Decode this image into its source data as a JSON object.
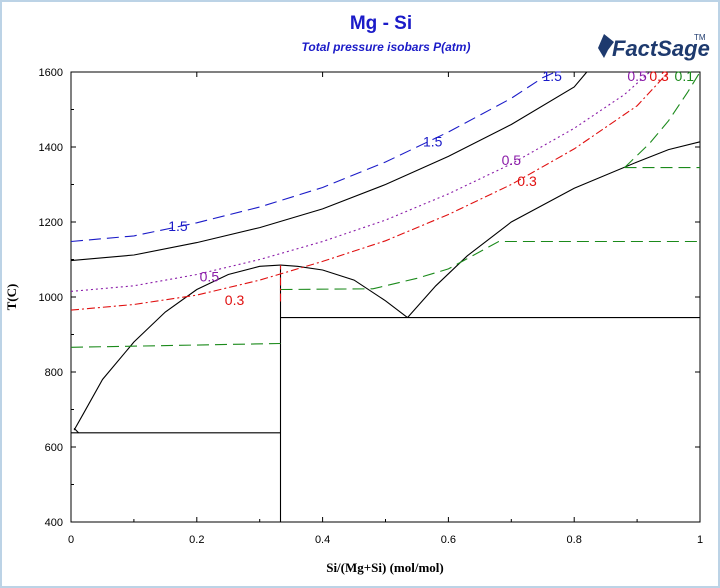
{
  "chart_data": {
    "type": "line",
    "title": "Mg - Si",
    "subtitle": "Total pressure isobars P(atm)",
    "xlabel": "Si/(Mg+Si) (mol/mol)",
    "ylabel": "T(C)",
    "xlim": [
      0,
      1
    ],
    "ylim": [
      400,
      1600
    ],
    "x_ticks": [
      0,
      0.2,
      0.4,
      0.6,
      0.8,
      1
    ],
    "y_ticks": [
      400,
      600,
      800,
      1000,
      1200,
      1400,
      1600
    ],
    "x_tick_labels": [
      "0",
      "0.2",
      "0.4",
      "0.6",
      "0.8",
      "1"
    ],
    "y_tick_labels": [
      "400",
      "600",
      "800",
      "1000",
      "1200",
      "1400",
      "1600"
    ],
    "grid": false,
    "logo": "FactSage",
    "phase_boundaries": [
      {
        "name": "liquidus-mg-side",
        "color": "#000000",
        "style": "solid",
        "points": [
          [
            0.005,
            645
          ],
          [
            0.02,
            690
          ],
          [
            0.05,
            780
          ],
          [
            0.1,
            880
          ],
          [
            0.15,
            960
          ],
          [
            0.2,
            1020
          ],
          [
            0.25,
            1060
          ],
          [
            0.3,
            1082
          ],
          [
            0.333,
            1085
          ]
        ]
      },
      {
        "name": "liquidus-mg2si-right",
        "color": "#000000",
        "style": "solid",
        "points": [
          [
            0.333,
            1085
          ],
          [
            0.36,
            1082
          ],
          [
            0.4,
            1072
          ],
          [
            0.45,
            1045
          ],
          [
            0.5,
            990
          ],
          [
            0.535,
            945
          ]
        ]
      },
      {
        "name": "liquidus-si-side",
        "color": "#000000",
        "style": "solid",
        "points": [
          [
            0.535,
            945
          ],
          [
            0.58,
            1030
          ],
          [
            0.63,
            1110
          ],
          [
            0.7,
            1200
          ],
          [
            0.8,
            1290
          ],
          [
            0.9,
            1360
          ],
          [
            0.95,
            1393
          ],
          [
            1.0,
            1414
          ]
        ]
      },
      {
        "name": "eutectic-mg",
        "color": "#000000",
        "style": "solid",
        "points": [
          [
            0.0,
            638
          ],
          [
            0.333,
            638
          ]
        ]
      },
      {
        "name": "eutectic-si",
        "color": "#000000",
        "style": "solid",
        "points": [
          [
            0.333,
            945
          ],
          [
            1.0,
            945
          ]
        ]
      },
      {
        "name": "mg2si-compound",
        "color": "#000000",
        "style": "solid",
        "points": [
          [
            0.333,
            400
          ],
          [
            0.333,
            1085
          ]
        ]
      },
      {
        "name": "mg-eutectic-left-drop",
        "color": "#000000",
        "style": "solid",
        "points": [
          [
            0.005,
            650
          ],
          [
            0.012,
            638
          ]
        ]
      }
    ],
    "series": [
      {
        "name": "1.5",
        "color": "#1b1bc8",
        "style": "longdash",
        "points": [
          [
            0,
            1148
          ],
          [
            0.1,
            1163
          ],
          [
            0.2,
            1198
          ],
          [
            0.3,
            1240
          ],
          [
            0.4,
            1292
          ],
          [
            0.5,
            1360
          ],
          [
            0.6,
            1440
          ],
          [
            0.7,
            1530
          ],
          [
            0.75,
            1585
          ],
          [
            0.77,
            1600
          ]
        ]
      },
      {
        "name": "1",
        "color": "#000000",
        "style": "solid",
        "points": [
          [
            0,
            1097
          ],
          [
            0.1,
            1112
          ],
          [
            0.2,
            1145
          ],
          [
            0.3,
            1185
          ],
          [
            0.4,
            1235
          ],
          [
            0.5,
            1300
          ],
          [
            0.6,
            1375
          ],
          [
            0.7,
            1460
          ],
          [
            0.8,
            1560
          ],
          [
            0.82,
            1600
          ]
        ]
      },
      {
        "name": "0.5",
        "color": "#8a1ba8",
        "style": "dotted",
        "points": [
          [
            0,
            1015
          ],
          [
            0.1,
            1030
          ],
          [
            0.2,
            1060
          ],
          [
            0.3,
            1100
          ],
          [
            0.4,
            1148
          ],
          [
            0.5,
            1205
          ],
          [
            0.6,
            1275
          ],
          [
            0.7,
            1355
          ],
          [
            0.8,
            1450
          ],
          [
            0.88,
            1540
          ],
          [
            0.92,
            1600
          ]
        ]
      },
      {
        "name": "0.3",
        "color": "#e01010",
        "style": "dashdot",
        "points": [
          [
            0,
            965
          ],
          [
            0.1,
            980
          ],
          [
            0.2,
            1005
          ],
          [
            0.3,
            1045
          ],
          [
            0.4,
            1095
          ],
          [
            0.5,
            1150
          ],
          [
            0.6,
            1220
          ],
          [
            0.7,
            1300
          ],
          [
            0.8,
            1395
          ],
          [
            0.9,
            1510
          ],
          [
            0.95,
            1600
          ]
        ]
      },
      {
        "name": "0.1",
        "color": "#1b8a1b",
        "style": "longdash",
        "points": [
          [
            0,
            866
          ],
          [
            0.333,
            876
          ]
        ]
      },
      {
        "name": "0.1-b",
        "color": "#1b8a1b",
        "style": "longdash",
        "points": [
          [
            0.333,
            1020
          ],
          [
            0.48,
            1022
          ],
          [
            0.55,
            1050
          ],
          [
            0.6,
            1075
          ],
          [
            0.68,
            1148
          ],
          [
            1.0,
            1148
          ]
        ]
      },
      {
        "name": "0.1-c",
        "color": "#1b8a1b",
        "style": "longdash",
        "points": [
          [
            0.88,
            1345
          ],
          [
            1.0,
            1345
          ]
        ]
      },
      {
        "name": "0.1-d",
        "color": "#1b8a1b",
        "style": "longdash",
        "points": [
          [
            0.88,
            1345
          ],
          [
            0.92,
            1410
          ],
          [
            0.95,
            1470
          ],
          [
            0.98,
            1545
          ],
          [
            1.0,
            1600
          ]
        ]
      }
    ],
    "red_dashdot_vertical": [
      {
        "points": [
          [
            0.333,
            988
          ],
          [
            0.333,
            1085
          ]
        ]
      }
    ],
    "labels": [
      {
        "text": "1.5",
        "color": "#1b1bc8",
        "x": 0.765,
        "y": 1590
      },
      {
        "text": "1.5",
        "color": "#1b1bc8",
        "x": 0.575,
        "y": 1415
      },
      {
        "text": "1.5",
        "color": "#1b1bc8",
        "x": 0.17,
        "y": 1190
      },
      {
        "text": "0.5",
        "color": "#8a1ba8",
        "x": 0.9,
        "y": 1590
      },
      {
        "text": "0.3",
        "color": "#e01010",
        "x": 0.935,
        "y": 1590
      },
      {
        "text": "0.1",
        "color": "#1b8a1b",
        "x": 0.975,
        "y": 1590
      },
      {
        "text": "0.5",
        "color": "#8a1ba8",
        "x": 0.7,
        "y": 1365
      },
      {
        "text": "0.3",
        "color": "#e01010",
        "x": 0.725,
        "y": 1310
      },
      {
        "text": "0.5",
        "color": "#8a1ba8",
        "x": 0.22,
        "y": 1055
      },
      {
        "text": "0.3",
        "color": "#e01010",
        "x": 0.26,
        "y": 992
      }
    ]
  }
}
